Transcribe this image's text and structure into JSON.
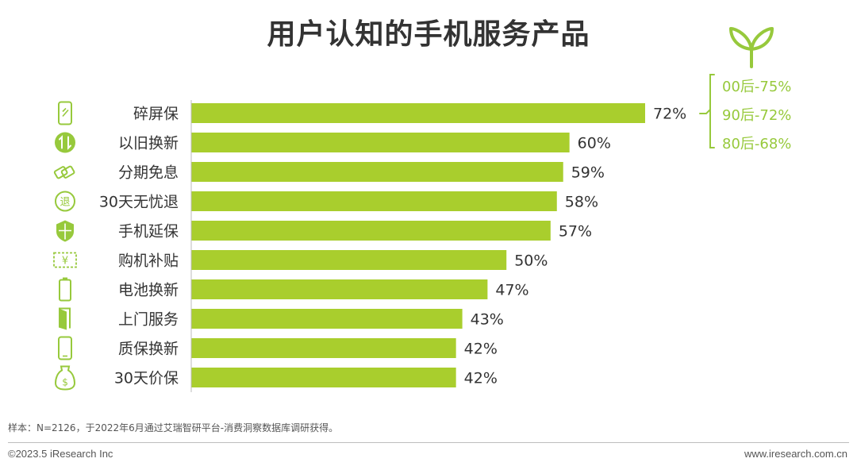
{
  "title": "用户认知的手机服务产品",
  "annotation": {
    "lines": [
      "00后-75%",
      "90后-72%",
      "80后-68%"
    ]
  },
  "footer": {
    "sample": "样本：N=2126，于2022年6月通过艾瑞智研平台-消费洞察数据库调研获得。",
    "copyright": "©2023.5 iResearch Inc",
    "website": "www.iresearch.com.cn"
  },
  "colors": {
    "bar": "#A9CE2D",
    "annotation": "#97C93C",
    "icon": "#97C93C"
  },
  "icons": [
    "screen-protector-icon",
    "trade-in-icon",
    "installment-icon",
    "return-icon",
    "shield-icon",
    "subsidy-icon",
    "battery-icon",
    "door-icon",
    "phone-icon",
    "price-tag-icon"
  ],
  "chart_data": {
    "type": "bar",
    "orientation": "horizontal",
    "categories": [
      "碎屏保",
      "以旧换新",
      "分期免息",
      "30天无忧退",
      "手机延保",
      "购机补贴",
      "电池换新",
      "上门服务",
      "质保换新",
      "30天价保"
    ],
    "values": [
      72,
      60,
      59,
      58,
      57,
      50,
      47,
      43,
      42,
      42
    ],
    "value_labels": [
      "72%",
      "60%",
      "59%",
      "58%",
      "57%",
      "50%",
      "47%",
      "43%",
      "42%",
      "42%"
    ],
    "title": "用户认知的手机服务产品",
    "xlabel": "",
    "ylabel": "",
    "xlim": [
      0,
      72
    ]
  }
}
